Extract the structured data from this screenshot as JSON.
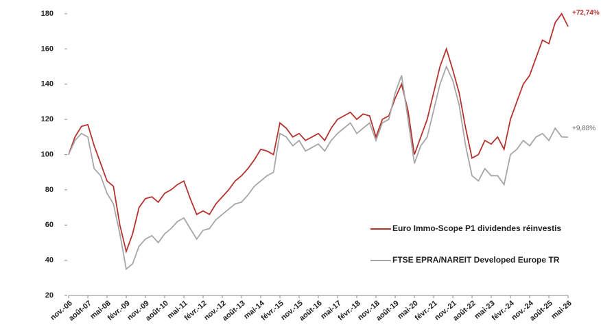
{
  "chart_data": {
    "type": "line",
    "categories": [
      "nov.-06",
      null,
      null,
      "août-07",
      null,
      null,
      "mai-08",
      null,
      null,
      "févr.-09",
      null,
      null,
      "nov.-09",
      null,
      null,
      "août-10",
      null,
      null,
      "mai-11",
      null,
      null,
      "févr.-12",
      null,
      null,
      "nov.-12",
      null,
      null,
      "août-13",
      null,
      null,
      "mai-14",
      null,
      null,
      "févr.-15",
      null,
      null,
      "nov.-15",
      null,
      null,
      "août-16",
      null,
      null,
      "mai-17",
      null,
      null,
      "févr.-18",
      null,
      null,
      "nov.-18",
      null,
      null,
      "août-19",
      null,
      null,
      "mai-20",
      null,
      null,
      "févr.-21",
      null,
      null,
      "nov.-21",
      null,
      null,
      "août-22",
      null,
      null,
      "mai-23",
      null,
      null,
      "févr.-24",
      null,
      null,
      "nov.-24",
      null,
      null,
      "août-25",
      null,
      null,
      "mai-26"
    ],
    "series": [
      {
        "name": "Euro Immo-Scope P1 dividendes réinvestis",
        "color": "#b5322e",
        "values": [
          100,
          110,
          116,
          117,
          105,
          95,
          85,
          82,
          60,
          45,
          55,
          70,
          75,
          76,
          73,
          78,
          80,
          83,
          85,
          75,
          66,
          68,
          66,
          72,
          76,
          80,
          85,
          88,
          92,
          97,
          103,
          102,
          100,
          118,
          115,
          110,
          112,
          108,
          110,
          112,
          108,
          115,
          120,
          122,
          124,
          120,
          123,
          122,
          110,
          120,
          122,
          132,
          140,
          125,
          100,
          110,
          120,
          135,
          150,
          160,
          148,
          135,
          115,
          98,
          100,
          108,
          106,
          110,
          103,
          120,
          130,
          140,
          145,
          155,
          165,
          163,
          175,
          180,
          172.74
        ]
      },
      {
        "name": "FTSE EPRA/NAREIT Developed Europe TR",
        "color": "#a6a6a6",
        "values": [
          100,
          108,
          112,
          110,
          92,
          88,
          78,
          72,
          55,
          35,
          38,
          48,
          52,
          54,
          50,
          55,
          58,
          62,
          64,
          58,
          52,
          57,
          58,
          63,
          66,
          69,
          72,
          73,
          77,
          82,
          85,
          88,
          90,
          112,
          110,
          105,
          108,
          102,
          104,
          106,
          102,
          108,
          112,
          115,
          118,
          112,
          115,
          118,
          108,
          118,
          120,
          135,
          145,
          120,
          95,
          105,
          110,
          125,
          140,
          150,
          142,
          128,
          105,
          88,
          85,
          92,
          88,
          88,
          83,
          100,
          103,
          108,
          105,
          110,
          112,
          108,
          115,
          110,
          109.88
        ]
      }
    ],
    "annotations": [
      "+72,74%",
      "+9,88%"
    ],
    "ylim": [
      20,
      180
    ],
    "yticks": [
      20,
      40,
      60,
      80,
      100,
      120,
      140,
      160,
      180
    ]
  }
}
